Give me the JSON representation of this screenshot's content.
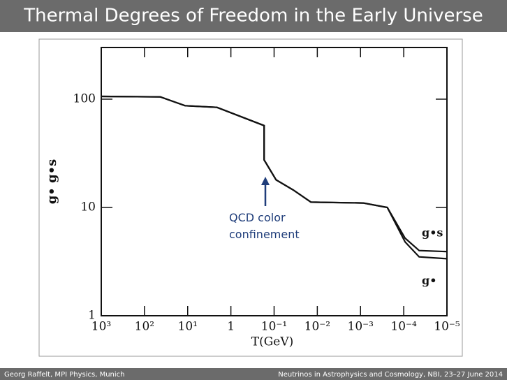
{
  "slide_title": "Thermal Degrees of Freedom in the Early Universe",
  "footer_left": "Georg Raffelt, MPI Physics, Munich",
  "footer_right": "Neutrinos in Astrophysics and Cosmology, NBI, 23–27 June 2014",
  "chart_data": {
    "type": "line",
    "xlabel": "T(GeV)",
    "ylabel": "g•   g•s",
    "annotation": "QCD color confinement",
    "xlog": true,
    "ylog": true,
    "xlim": [
      1000,
      1e-05
    ],
    "ylim": [
      1,
      300
    ],
    "xticks": [
      {
        "value": 1000,
        "label": "10³"
      },
      {
        "value": 100,
        "label": "10²"
      },
      {
        "value": 10,
        "label": "10¹"
      },
      {
        "value": 1,
        "label": "1"
      },
      {
        "value": 0.1,
        "label": "10⁻¹"
      },
      {
        "value": 0.01,
        "label": "10⁻²"
      },
      {
        "value": 0.001,
        "label": "10⁻³"
      },
      {
        "value": 0.0001,
        "label": "10⁻⁴"
      },
      {
        "value": 1e-05,
        "label": "10⁻⁵"
      }
    ],
    "yticks": [
      1,
      10,
      100
    ],
    "x": [
      1000,
      43,
      11.5,
      2.1,
      0.17,
      0.17,
      0.09,
      0.036,
      0.014,
      0.00087,
      0.00024,
      9.3e-05,
      4.4e-05,
      1e-05
    ],
    "series": [
      {
        "name": "g•s",
        "color": "#111111",
        "values": [
          106,
          105,
          87,
          84,
          57,
          27.5,
          18,
          14.5,
          11.2,
          11,
          10,
          5.2,
          4.0,
          3.91
        ]
      },
      {
        "name": "g•",
        "color": "#111111",
        "values": [
          106,
          105,
          87,
          84,
          57,
          27.5,
          18,
          14.5,
          11.2,
          11,
          10,
          4.8,
          3.5,
          3.36
        ]
      }
    ]
  }
}
